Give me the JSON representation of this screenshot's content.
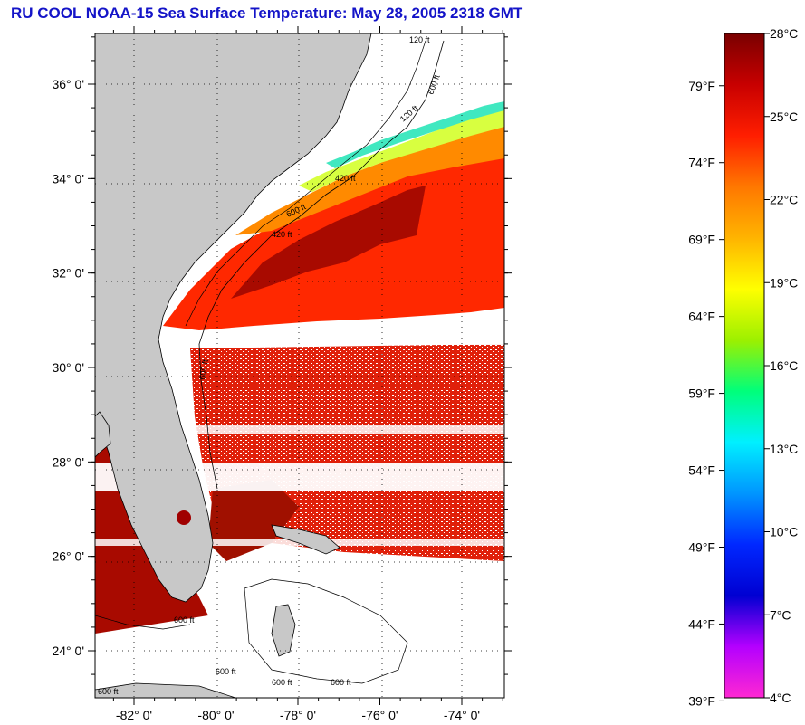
{
  "title": "RU COOL  NOAA-15  Sea Surface Temperature:  May 28, 2005 2318 GMT",
  "map": {
    "lon_range": [
      -83.0,
      -72.5
    ],
    "lat_range": [
      23.0,
      37.5
    ],
    "lat_ticks": [
      {
        "value": 36,
        "label": "36° 0'"
      },
      {
        "value": 34,
        "label": "34° 0'"
      },
      {
        "value": 32,
        "label": "32° 0'"
      },
      {
        "value": 30,
        "label": "30° 0'"
      },
      {
        "value": 28,
        "label": "28° 0'"
      },
      {
        "value": 26,
        "label": "26° 0'"
      },
      {
        "value": 24,
        "label": "24° 0'"
      }
    ],
    "lon_ticks": [
      {
        "value": -82,
        "label": "-82° 0'"
      },
      {
        "value": -80,
        "label": "-80° 0'"
      },
      {
        "value": -78,
        "label": "-78° 0'"
      },
      {
        "value": -76,
        "label": "-76° 0'"
      },
      {
        "value": -74,
        "label": "-74° 0'"
      }
    ],
    "contour_labels": [
      "120 ft",
      "600 ft",
      "120 ft",
      "420 ft",
      "600 ft",
      "420 ft",
      "600 ft",
      "600 ft",
      "600 ft",
      "600 ft",
      "600 ft",
      "600 ft"
    ],
    "colors": {
      "land": "#c8c8c8",
      "no_data": "#ffffff"
    }
  },
  "colorbar": {
    "celsius": [
      {
        "value": 28,
        "label": "28°C"
      },
      {
        "value": 25,
        "label": "25°C"
      },
      {
        "value": 22,
        "label": "22°C"
      },
      {
        "value": 19,
        "label": "19°C"
      },
      {
        "value": 16,
        "label": "16°C"
      },
      {
        "value": 13,
        "label": "13°C"
      },
      {
        "value": 10,
        "label": "10°C"
      },
      {
        "value": 7,
        "label": "7°C"
      },
      {
        "value": 4,
        "label": "4°C"
      }
    ],
    "fahrenheit": [
      {
        "value": 79,
        "label": "79°F"
      },
      {
        "value": 74,
        "label": "74°F"
      },
      {
        "value": 69,
        "label": "69°F"
      },
      {
        "value": 64,
        "label": "64°F"
      },
      {
        "value": 59,
        "label": "59°F"
      },
      {
        "value": 54,
        "label": "54°F"
      },
      {
        "value": 49,
        "label": "49°F"
      },
      {
        "value": 44,
        "label": "44°F"
      },
      {
        "value": 39,
        "label": "39°F"
      }
    ],
    "stops": [
      "#7a0000",
      "#c80000",
      "#ff1e00",
      "#ff7800",
      "#ffb400",
      "#ffff00",
      "#9cf000",
      "#00ff7a",
      "#00f0ff",
      "#0096ff",
      "#0028ff",
      "#0000d2",
      "#b400ff",
      "#ff28d2"
    ]
  }
}
